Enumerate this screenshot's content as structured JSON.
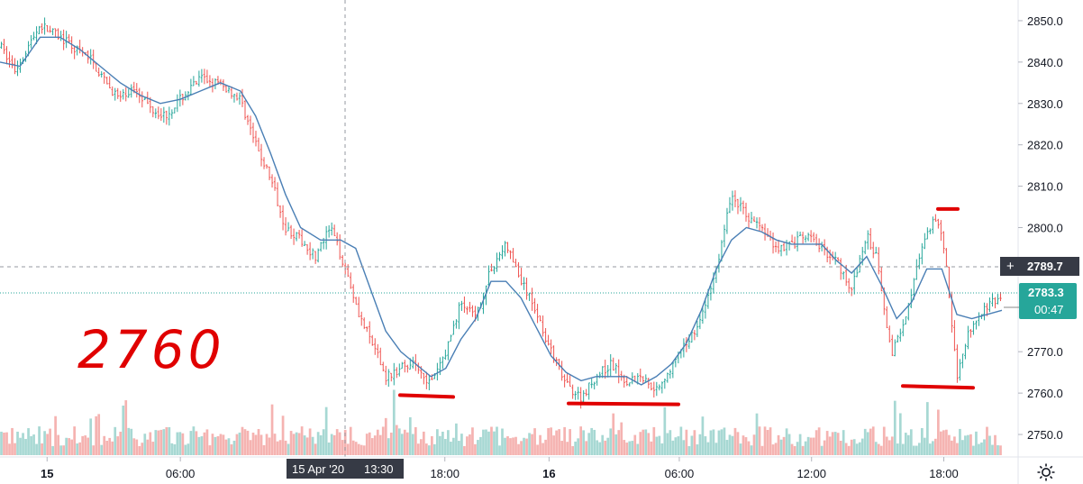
{
  "chart_data": {
    "type": "candlestick",
    "price_axis": {
      "ticks": [
        "2850.0",
        "2840.0",
        "2830.0",
        "2820.0",
        "2810.0",
        "2800.0",
        "2790.0",
        "2770.0",
        "2760.0",
        "2750.0"
      ],
      "min": 2745,
      "max": 2855
    },
    "time_axis": {
      "ticks": [
        "15",
        "06:00",
        "18:00",
        "16",
        "06:00",
        "12:00",
        "18:00"
      ],
      "bold_ticks": [
        "15",
        "16"
      ]
    },
    "crosshair": {
      "time_label": "15 Apr '20",
      "time_value": "13:30",
      "price_label": "2789.7",
      "price": 2789.7
    },
    "last_price": {
      "label": "2783.3",
      "price": 2783.3,
      "countdown": "00:47"
    },
    "price_path": [
      [
        0,
        2844
      ],
      [
        0.015,
        2838
      ],
      [
        0.04,
        2849
      ],
      [
        0.06,
        2846
      ],
      [
        0.075,
        2843
      ],
      [
        0.09,
        2841
      ],
      [
        0.105,
        2835
      ],
      [
        0.12,
        2831
      ],
      [
        0.135,
        2834
      ],
      [
        0.15,
        2829
      ],
      [
        0.165,
        2827
      ],
      [
        0.18,
        2831
      ],
      [
        0.2,
        2836
      ],
      [
        0.215,
        2835
      ],
      [
        0.23,
        2833
      ],
      [
        0.24,
        2831
      ],
      [
        0.255,
        2820
      ],
      [
        0.27,
        2812
      ],
      [
        0.285,
        2800
      ],
      [
        0.3,
        2797
      ],
      [
        0.315,
        2793
      ],
      [
        0.33,
        2800
      ],
      [
        0.345,
        2790
      ],
      [
        0.36,
        2778
      ],
      [
        0.375,
        2770
      ],
      [
        0.385,
        2764
      ],
      [
        0.4,
        2766
      ],
      [
        0.415,
        2767
      ],
      [
        0.43,
        2762
      ],
      [
        0.445,
        2770
      ],
      [
        0.46,
        2782
      ],
      [
        0.475,
        2778
      ],
      [
        0.49,
        2790
      ],
      [
        0.505,
        2796
      ],
      [
        0.52,
        2787
      ],
      [
        0.535,
        2780
      ],
      [
        0.55,
        2770
      ],
      [
        0.565,
        2762
      ],
      [
        0.58,
        2759
      ],
      [
        0.595,
        2764
      ],
      [
        0.61,
        2767
      ],
      [
        0.625,
        2763
      ],
      [
        0.64,
        2764
      ],
      [
        0.655,
        2761
      ],
      [
        0.67,
        2766
      ],
      [
        0.685,
        2772
      ],
      [
        0.7,
        2778
      ],
      [
        0.715,
        2790
      ],
      [
        0.73,
        2808
      ],
      [
        0.745,
        2803
      ],
      [
        0.76,
        2800
      ],
      [
        0.775,
        2795
      ],
      [
        0.79,
        2796
      ],
      [
        0.805,
        2798
      ],
      [
        0.82,
        2795
      ],
      [
        0.835,
        2792
      ],
      [
        0.85,
        2785
      ],
      [
        0.865,
        2798
      ],
      [
        0.875,
        2793
      ],
      [
        0.89,
        2769
      ],
      [
        0.905,
        2780
      ],
      [
        0.92,
        2795
      ],
      [
        0.935,
        2803
      ],
      [
        0.945,
        2790
      ],
      [
        0.955,
        2764
      ],
      [
        0.965,
        2774
      ],
      [
        0.98,
        2780
      ],
      [
        1.0,
        2783.3
      ]
    ],
    "ma_path": [
      [
        0,
        2840
      ],
      [
        0.02,
        2839
      ],
      [
        0.04,
        2846
      ],
      [
        0.06,
        2846
      ],
      [
        0.08,
        2843
      ],
      [
        0.1,
        2839
      ],
      [
        0.12,
        2835
      ],
      [
        0.14,
        2832
      ],
      [
        0.16,
        2830
      ],
      [
        0.18,
        2831
      ],
      [
        0.2,
        2833
      ],
      [
        0.22,
        2835
      ],
      [
        0.24,
        2833
      ],
      [
        0.255,
        2827
      ],
      [
        0.27,
        2818
      ],
      [
        0.285,
        2808
      ],
      [
        0.3,
        2800
      ],
      [
        0.32,
        2797
      ],
      [
        0.34,
        2797
      ],
      [
        0.355,
        2795
      ],
      [
        0.37,
        2785
      ],
      [
        0.385,
        2775
      ],
      [
        0.4,
        2770
      ],
      [
        0.415,
        2767
      ],
      [
        0.43,
        2764
      ],
      [
        0.445,
        2766
      ],
      [
        0.46,
        2773
      ],
      [
        0.475,
        2778
      ],
      [
        0.49,
        2787
      ],
      [
        0.505,
        2787
      ],
      [
        0.52,
        2783
      ],
      [
        0.535,
        2776
      ],
      [
        0.55,
        2769
      ],
      [
        0.565,
        2765
      ],
      [
        0.58,
        2763
      ],
      [
        0.595,
        2764
      ],
      [
        0.61,
        2764
      ],
      [
        0.625,
        2764
      ],
      [
        0.64,
        2762
      ],
      [
        0.655,
        2764
      ],
      [
        0.67,
        2767
      ],
      [
        0.685,
        2772
      ],
      [
        0.7,
        2780
      ],
      [
        0.715,
        2790
      ],
      [
        0.73,
        2797
      ],
      [
        0.745,
        2800
      ],
      [
        0.76,
        2799
      ],
      [
        0.775,
        2797
      ],
      [
        0.79,
        2796
      ],
      [
        0.805,
        2796
      ],
      [
        0.82,
        2796
      ],
      [
        0.835,
        2792
      ],
      [
        0.85,
        2789
      ],
      [
        0.865,
        2793
      ],
      [
        0.88,
        2786
      ],
      [
        0.895,
        2778
      ],
      [
        0.91,
        2782
      ],
      [
        0.925,
        2790
      ],
      [
        0.94,
        2790
      ],
      [
        0.955,
        2779
      ],
      [
        0.97,
        2778
      ],
      [
        0.985,
        2779
      ],
      [
        1.0,
        2780
      ]
    ],
    "annotations": {
      "text": "2760",
      "levels": [
        2759.5,
        2757.5,
        2761.5
      ],
      "high_mark": 2804.5
    },
    "colors": {
      "up": "#26a69a",
      "down": "#ef5350",
      "ma": "#2962ff",
      "marker": "#e00000",
      "last_price_bg": "#26a69a",
      "crosshair_bg": "#363a45"
    }
  }
}
